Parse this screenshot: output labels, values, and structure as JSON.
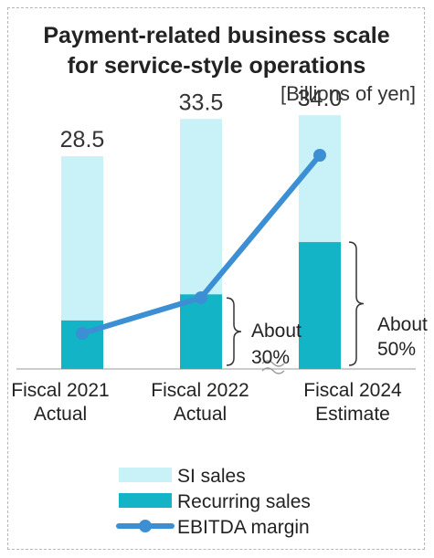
{
  "chart_data": {
    "type": "bar",
    "title_lines": [
      "Payment-related business scale",
      "for service-style operations"
    ],
    "unit_label": "[Billions of yen]",
    "categories": [
      {
        "line1": "Fiscal 2021",
        "line2": "Actual"
      },
      {
        "line1": "Fiscal 2022",
        "line2": "Actual"
      },
      {
        "line1": "Fiscal 2024",
        "line2": "Estimate"
      }
    ],
    "totals": [
      28.5,
      33.5,
      34.0
    ],
    "total_labels": [
      "28.5",
      "33.5",
      "34.0"
    ],
    "series": [
      {
        "name": "Recurring sales",
        "values": [
          6.5,
          10.0,
          17.0
        ],
        "color": "#12b4c6"
      },
      {
        "name": "SI sales",
        "values": [
          22.0,
          23.5,
          17.0
        ],
        "color": "#c9f1f8"
      }
    ],
    "line_series": {
      "name": "EBITDA margin",
      "values": [
        0.15,
        0.37,
        0.93
      ],
      "scale": "relative 0-1",
      "color": "#3d8fd4"
    },
    "annotations": [
      {
        "line1": "About",
        "line2": "30%",
        "bar_index": 1
      },
      {
        "line1": "About",
        "line2": "50%",
        "bar_index": 2
      }
    ],
    "axis_break": true,
    "ylim": [
      0,
      35
    ],
    "legend": {
      "placement": "bottom",
      "items": [
        {
          "label": "SI sales",
          "kind": "bar",
          "color": "#c9f1f8"
        },
        {
          "label": "Recurring sales",
          "kind": "bar",
          "color": "#12b4c6"
        },
        {
          "label": "EBITDA margin",
          "kind": "line",
          "color": "#3d8fd4"
        }
      ]
    }
  }
}
